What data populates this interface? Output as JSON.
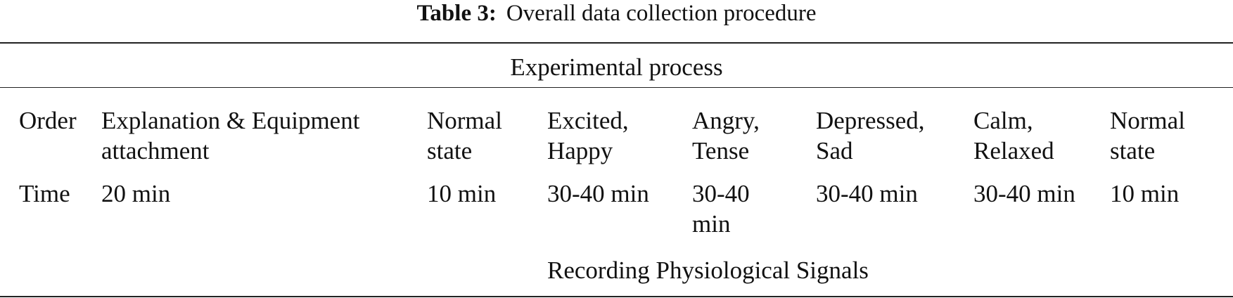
{
  "caption": {
    "label": "Table 3:",
    "title": "Overall data collection procedure"
  },
  "table": {
    "spanning_header": "Experimental process",
    "rows": [
      {
        "header": "Order",
        "cells": [
          [
            "Explanation & Equipment",
            "attachment"
          ],
          [
            "Normal",
            "state"
          ],
          [
            "Excited,",
            "Happy"
          ],
          [
            "Angry,",
            "Tense"
          ],
          [
            "Depressed,",
            "Sad"
          ],
          [
            "Calm,",
            "Relaxed"
          ],
          [
            "Normal",
            "state"
          ]
        ]
      },
      {
        "header": "Time",
        "cells": [
          [
            "20 min"
          ],
          [
            "10 min"
          ],
          [
            "30-40 min"
          ],
          [
            "30-40",
            "min"
          ],
          [
            "30-40 min"
          ],
          [
            "30-40 min"
          ],
          [
            "10 min"
          ]
        ]
      }
    ],
    "footer_note": "Recording Physiological Signals"
  }
}
